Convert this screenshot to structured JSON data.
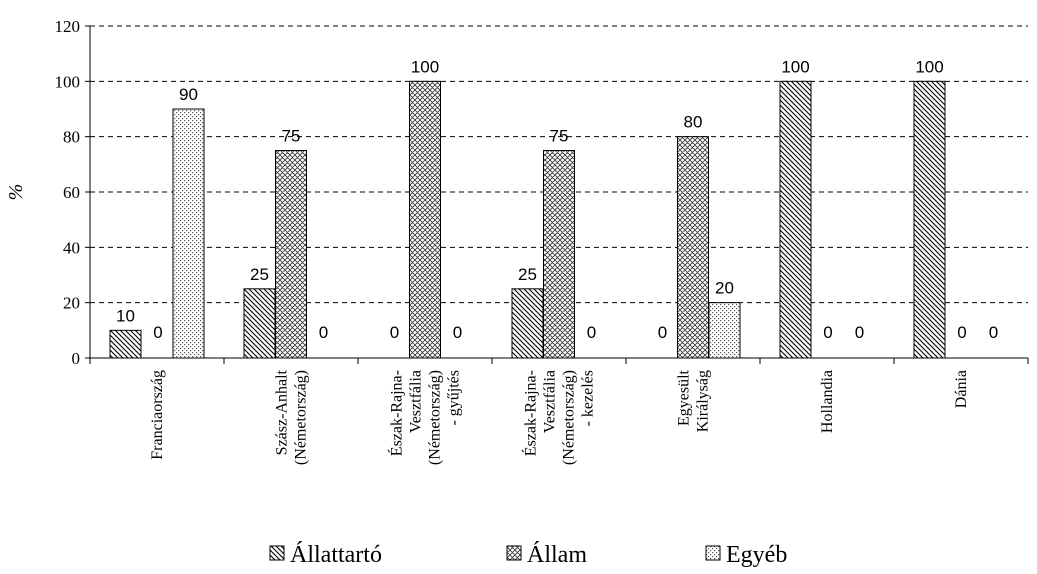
{
  "chart_data": {
    "type": "bar",
    "ylabel": "%",
    "ylim": [
      0,
      120
    ],
    "yticks": [
      0,
      20,
      40,
      60,
      80,
      100,
      120
    ],
    "grid": true,
    "legend_position": "bottom",
    "categories": [
      [
        "Franciaország"
      ],
      [
        "Szász-Anhalt",
        "(Németország)"
      ],
      [
        "Észak-Rajna-",
        "Vesztfália",
        "(Németország)",
        "- gyűjtés"
      ],
      [
        "Észak-Rajna-",
        "Vesztfália",
        "(Németország)",
        "- kezelés"
      ],
      [
        "Egyesült",
        "Királyság"
      ],
      [
        "Hollandia"
      ],
      [
        "Dánia"
      ]
    ],
    "series": [
      {
        "name": "Állattartó",
        "pattern": "hatch-diagonal",
        "values": [
          10,
          25,
          0,
          25,
          0,
          100,
          100
        ]
      },
      {
        "name": "Állam",
        "pattern": "crosshatch",
        "values": [
          0,
          75,
          100,
          75,
          80,
          0,
          0
        ]
      },
      {
        "name": "Egyéb",
        "pattern": "dots",
        "values": [
          90,
          0,
          0,
          0,
          20,
          0,
          0
        ]
      }
    ]
  }
}
